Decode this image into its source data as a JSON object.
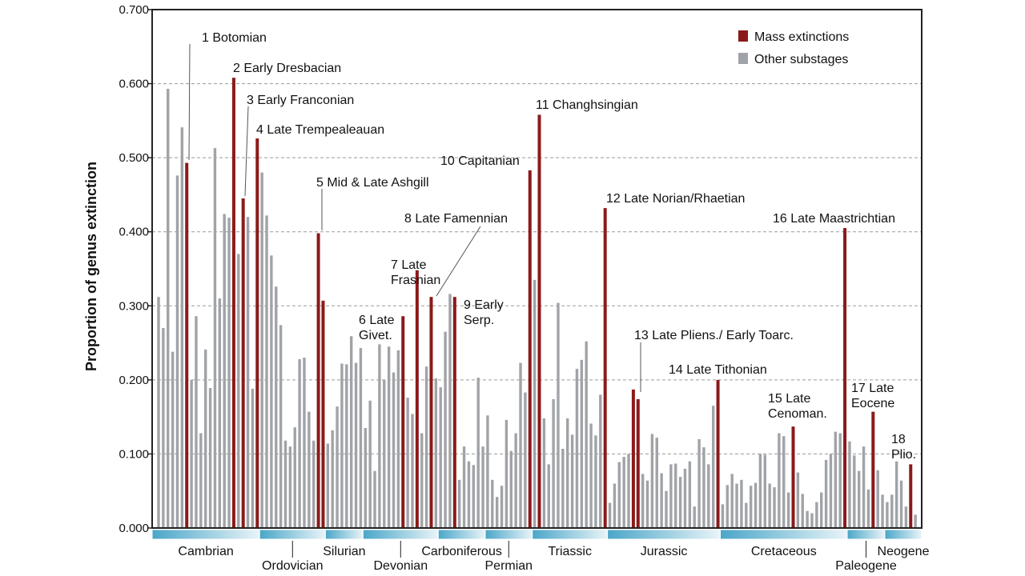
{
  "chart_data": {
    "type": "bar",
    "ylabel": "Proportion of genus extinction",
    "ylim": [
      0,
      0.7
    ],
    "yticks": [
      "0.000",
      "0.100",
      "0.200",
      "0.300",
      "0.400",
      "0.500",
      "0.600",
      "0.700"
    ],
    "grid": "horizontal dashed",
    "legend_position": "top-right",
    "series": [
      {
        "name": "Mass extinctions",
        "color": "#8b1a1a"
      },
      {
        "name": "Other substages",
        "color": "#a0a3a7"
      }
    ],
    "bars": [
      {
        "v": 0.312,
        "m": false
      },
      {
        "v": 0.27,
        "m": false
      },
      {
        "v": 0.593,
        "m": false
      },
      {
        "v": 0.238,
        "m": false
      },
      {
        "v": 0.476,
        "m": false
      },
      {
        "v": 0.541,
        "m": false
      },
      {
        "v": 0.493,
        "m": true
      },
      {
        "v": 0.2,
        "m": false
      },
      {
        "v": 0.286,
        "m": false
      },
      {
        "v": 0.128,
        "m": false
      },
      {
        "v": 0.241,
        "m": false
      },
      {
        "v": 0.189,
        "m": false
      },
      {
        "v": 0.513,
        "m": false
      },
      {
        "v": 0.31,
        "m": false
      },
      {
        "v": 0.424,
        "m": false
      },
      {
        "v": 0.419,
        "m": false
      },
      {
        "v": 0.608,
        "m": true
      },
      {
        "v": 0.37,
        "m": false
      },
      {
        "v": 0.445,
        "m": true
      },
      {
        "v": 0.42,
        "m": false
      },
      {
        "v": 0.188,
        "m": false
      },
      {
        "v": 0.526,
        "m": true
      },
      {
        "v": 0.48,
        "m": false
      },
      {
        "v": 0.422,
        "m": false
      },
      {
        "v": 0.368,
        "m": false
      },
      {
        "v": 0.326,
        "m": false
      },
      {
        "v": 0.274,
        "m": false
      },
      {
        "v": 0.118,
        "m": false
      },
      {
        "v": 0.11,
        "m": false
      },
      {
        "v": 0.136,
        "m": false
      },
      {
        "v": 0.228,
        "m": false
      },
      {
        "v": 0.23,
        "m": false
      },
      {
        "v": 0.157,
        "m": false
      },
      {
        "v": 0.118,
        "m": false
      },
      {
        "v": 0.398,
        "m": true
      },
      {
        "v": 0.307,
        "m": true
      },
      {
        "v": 0.114,
        "m": false
      },
      {
        "v": 0.132,
        "m": false
      },
      {
        "v": 0.164,
        "m": false
      },
      {
        "v": 0.222,
        "m": false
      },
      {
        "v": 0.221,
        "m": false
      },
      {
        "v": 0.259,
        "m": false
      },
      {
        "v": 0.223,
        "m": false
      },
      {
        "v": 0.243,
        "m": false
      },
      {
        "v": 0.135,
        "m": false
      },
      {
        "v": 0.172,
        "m": false
      },
      {
        "v": 0.077,
        "m": false
      },
      {
        "v": 0.248,
        "m": false
      },
      {
        "v": 0.2,
        "m": false
      },
      {
        "v": 0.245,
        "m": false
      },
      {
        "v": 0.21,
        "m": false
      },
      {
        "v": 0.24,
        "m": false
      },
      {
        "v": 0.286,
        "m": true
      },
      {
        "v": 0.176,
        "m": false
      },
      {
        "v": 0.154,
        "m": false
      },
      {
        "v": 0.348,
        "m": true
      },
      {
        "v": 0.128,
        "m": false
      },
      {
        "v": 0.218,
        "m": false
      },
      {
        "v": 0.312,
        "m": true
      },
      {
        "v": 0.202,
        "m": false
      },
      {
        "v": 0.19,
        "m": false
      },
      {
        "v": 0.265,
        "m": false
      },
      {
        "v": 0.316,
        "m": false
      },
      {
        "v": 0.312,
        "m": true
      },
      {
        "v": 0.065,
        "m": false
      },
      {
        "v": 0.11,
        "m": false
      },
      {
        "v": 0.09,
        "m": false
      },
      {
        "v": 0.085,
        "m": false
      },
      {
        "v": 0.203,
        "m": false
      },
      {
        "v": 0.11,
        "m": false
      },
      {
        "v": 0.152,
        "m": false
      },
      {
        "v": 0.065,
        "m": false
      },
      {
        "v": 0.042,
        "m": false
      },
      {
        "v": 0.057,
        "m": false
      },
      {
        "v": 0.146,
        "m": false
      },
      {
        "v": 0.104,
        "m": false
      },
      {
        "v": 0.128,
        "m": false
      },
      {
        "v": 0.223,
        "m": false
      },
      {
        "v": 0.183,
        "m": false
      },
      {
        "v": 0.483,
        "m": true
      },
      {
        "v": 0.335,
        "m": false
      },
      {
        "v": 0.558,
        "m": true
      },
      {
        "v": 0.148,
        "m": false
      },
      {
        "v": 0.086,
        "m": false
      },
      {
        "v": 0.174,
        "m": false
      },
      {
        "v": 0.304,
        "m": false
      },
      {
        "v": 0.107,
        "m": false
      },
      {
        "v": 0.148,
        "m": false
      },
      {
        "v": 0.126,
        "m": false
      },
      {
        "v": 0.215,
        "m": false
      },
      {
        "v": 0.227,
        "m": false
      },
      {
        "v": 0.252,
        "m": false
      },
      {
        "v": 0.141,
        "m": false
      },
      {
        "v": 0.125,
        "m": false
      },
      {
        "v": 0.18,
        "m": false
      },
      {
        "v": 0.432,
        "m": true
      },
      {
        "v": 0.034,
        "m": false
      },
      {
        "v": 0.06,
        "m": false
      },
      {
        "v": 0.089,
        "m": false
      },
      {
        "v": 0.096,
        "m": false
      },
      {
        "v": 0.1,
        "m": false
      },
      {
        "v": 0.187,
        "m": true
      },
      {
        "v": 0.174,
        "m": true
      },
      {
        "v": 0.073,
        "m": false
      },
      {
        "v": 0.064,
        "m": false
      },
      {
        "v": 0.127,
        "m": false
      },
      {
        "v": 0.122,
        "m": false
      },
      {
        "v": 0.074,
        "m": false
      },
      {
        "v": 0.05,
        "m": false
      },
      {
        "v": 0.086,
        "m": false
      },
      {
        "v": 0.087,
        "m": false
      },
      {
        "v": 0.069,
        "m": false
      },
      {
        "v": 0.08,
        "m": false
      },
      {
        "v": 0.09,
        "m": false
      },
      {
        "v": 0.029,
        "m": false
      },
      {
        "v": 0.12,
        "m": false
      },
      {
        "v": 0.109,
        "m": false
      },
      {
        "v": 0.086,
        "m": false
      },
      {
        "v": 0.165,
        "m": false
      },
      {
        "v": 0.2,
        "m": true
      },
      {
        "v": 0.032,
        "m": false
      },
      {
        "v": 0.058,
        "m": false
      },
      {
        "v": 0.073,
        "m": false
      },
      {
        "v": 0.06,
        "m": false
      },
      {
        "v": 0.065,
        "m": false
      },
      {
        "v": 0.034,
        "m": false
      },
      {
        "v": 0.057,
        "m": false
      },
      {
        "v": 0.061,
        "m": false
      },
      {
        "v": 0.1,
        "m": false
      },
      {
        "v": 0.099,
        "m": false
      },
      {
        "v": 0.06,
        "m": false
      },
      {
        "v": 0.055,
        "m": false
      },
      {
        "v": 0.128,
        "m": false
      },
      {
        "v": 0.124,
        "m": false
      },
      {
        "v": 0.048,
        "m": false
      },
      {
        "v": 0.137,
        "m": true
      },
      {
        "v": 0.075,
        "m": false
      },
      {
        "v": 0.046,
        "m": false
      },
      {
        "v": 0.023,
        "m": false
      },
      {
        "v": 0.02,
        "m": false
      },
      {
        "v": 0.035,
        "m": false
      },
      {
        "v": 0.048,
        "m": false
      },
      {
        "v": 0.092,
        "m": false
      },
      {
        "v": 0.1,
        "m": false
      },
      {
        "v": 0.13,
        "m": false
      },
      {
        "v": 0.128,
        "m": false
      },
      {
        "v": 0.405,
        "m": true
      },
      {
        "v": 0.117,
        "m": false
      },
      {
        "v": 0.098,
        "m": false
      },
      {
        "v": 0.077,
        "m": false
      },
      {
        "v": 0.11,
        "m": false
      },
      {
        "v": 0.052,
        "m": false
      },
      {
        "v": 0.157,
        "m": true
      },
      {
        "v": 0.078,
        "m": false
      },
      {
        "v": 0.045,
        "m": false
      },
      {
        "v": 0.035,
        "m": false
      },
      {
        "v": 0.045,
        "m": false
      },
      {
        "v": 0.09,
        "m": false
      },
      {
        "v": 0.064,
        "m": false
      },
      {
        "v": 0.029,
        "m": false
      },
      {
        "v": 0.086,
        "m": true
      },
      {
        "v": 0.018,
        "m": false
      }
    ],
    "annotations": [
      {
        "lines": [
          "1 Botomian"
        ],
        "bar": 6
      },
      {
        "lines": [
          "2 Early Dresbacian"
        ],
        "bar": 16
      },
      {
        "lines": [
          "3 Early Franconian"
        ],
        "bar": 18
      },
      {
        "lines": [
          "4 Late Trempealeauan"
        ],
        "bar": 21
      },
      {
        "lines": [
          "5 Mid & Late Ashgill"
        ],
        "bar": 34
      },
      {
        "lines": [
          "6 Late",
          "Givet."
        ],
        "bar": 52
      },
      {
        "lines": [
          "7 Late",
          "Frasnian"
        ],
        "bar": 55
      },
      {
        "lines": [
          "8 Late Famennian"
        ],
        "bar": 58
      },
      {
        "lines": [
          "9 Early",
          "Serp."
        ],
        "bar": 63
      },
      {
        "lines": [
          "10 Capitanian"
        ],
        "bar": 79
      },
      {
        "lines": [
          "11 Changhsingian"
        ],
        "bar": 81
      },
      {
        "lines": [
          "12 Late Norian/Rhaetian"
        ],
        "bar": 95
      },
      {
        "lines": [
          "13 Late Pliens./ Early Toarc."
        ],
        "bar": 101
      },
      {
        "lines": [
          "14 Late Tithonian"
        ],
        "bar": 118
      },
      {
        "lines": [
          "15 Late",
          "Cenoman."
        ],
        "bar": 135
      },
      {
        "lines": [
          "16 Late Maastrichtian"
        ],
        "bar": 146
      },
      {
        "lines": [
          "17 Late",
          "Eocene"
        ],
        "bar": 152
      },
      {
        "lines": [
          "18",
          "Plio."
        ],
        "bar": 160
      }
    ],
    "periods": [
      {
        "name": "Cambrian",
        "row": 1,
        "from": 0,
        "to": 22
      },
      {
        "name": "Ordovician",
        "row": 2,
        "from": 22,
        "to": 36
      },
      {
        "name": "Silurian",
        "row": 1,
        "from": 36,
        "to": 44
      },
      {
        "name": "Devonian",
        "row": 2,
        "from": 44,
        "to": 60
      },
      {
        "name": "Carboniferous",
        "row": 1,
        "from": 60,
        "to": 70
      },
      {
        "name": "Permian",
        "row": 2,
        "from": 70,
        "to": 80
      },
      {
        "name": "Triassic",
        "row": 1,
        "from": 80,
        "to": 96
      },
      {
        "name": "Jurassic",
        "row": 1,
        "from": 96,
        "to": 120
      },
      {
        "name": "Cretaceous",
        "row": 1,
        "from": 120,
        "to": 147
      },
      {
        "name": "Paleogene",
        "row": 2,
        "from": 147,
        "to": 155
      },
      {
        "name": "Neogene",
        "row": 1,
        "from": 155,
        "to": 162
      }
    ]
  }
}
